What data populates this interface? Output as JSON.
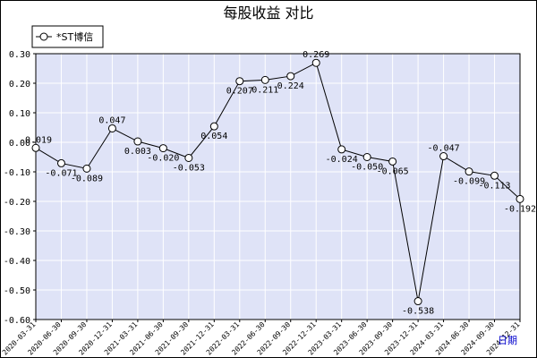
{
  "chart_data": {
    "type": "line",
    "title": "每股收益  对比",
    "xlabel": "",
    "ylabel": "",
    "ylim": [
      -0.6,
      0.3
    ],
    "yticks": [
      "0.30",
      "0.20",
      "0.10",
      "0.00",
      "-0.10",
      "-0.20",
      "-0.30",
      "-0.40",
      "-0.50",
      "-0.60"
    ],
    "grid": true,
    "legend_position": "top-left",
    "colors": {
      "plot_bg": "#dfe3f7",
      "grid": "#ffffff",
      "line": "#000000",
      "marker_fill": "#ffffff"
    },
    "corner_label": "日期",
    "categories": [
      "2020-03-31",
      "2020-06-30",
      "2020-09-30",
      "2020-12-31",
      "2021-03-31",
      "2021-06-30",
      "2021-09-30",
      "2021-12-31",
      "2022-03-31",
      "2022-06-30",
      "2022-09-30",
      "2022-12-31",
      "2023-03-31",
      "2023-06-30",
      "2023-09-30",
      "2023-12-31",
      "2024-03-31",
      "2024-06-30",
      "2024-09-30",
      "2024-12-31"
    ],
    "series": [
      {
        "name": "*ST博信",
        "values": [
          -0.019,
          -0.071,
          -0.089,
          0.047,
          0.003,
          -0.02,
          -0.053,
          0.054,
          0.207,
          0.211,
          0.224,
          0.269,
          -0.024,
          -0.05,
          -0.065,
          -0.538,
          -0.047,
          -0.099,
          -0.113,
          -0.192
        ],
        "labels": [
          "-0.019",
          "-0.071",
          "-0.089",
          "0.047",
          "0.003",
          "-0.020",
          "-0.053",
          "0.054",
          "0.207",
          "0.211",
          "0.224",
          "0.269",
          "-0.024",
          "-0.050",
          "-0.065",
          "-0.538",
          "-0.047",
          "-0.099",
          "-0.113",
          "-0.192"
        ]
      }
    ]
  }
}
